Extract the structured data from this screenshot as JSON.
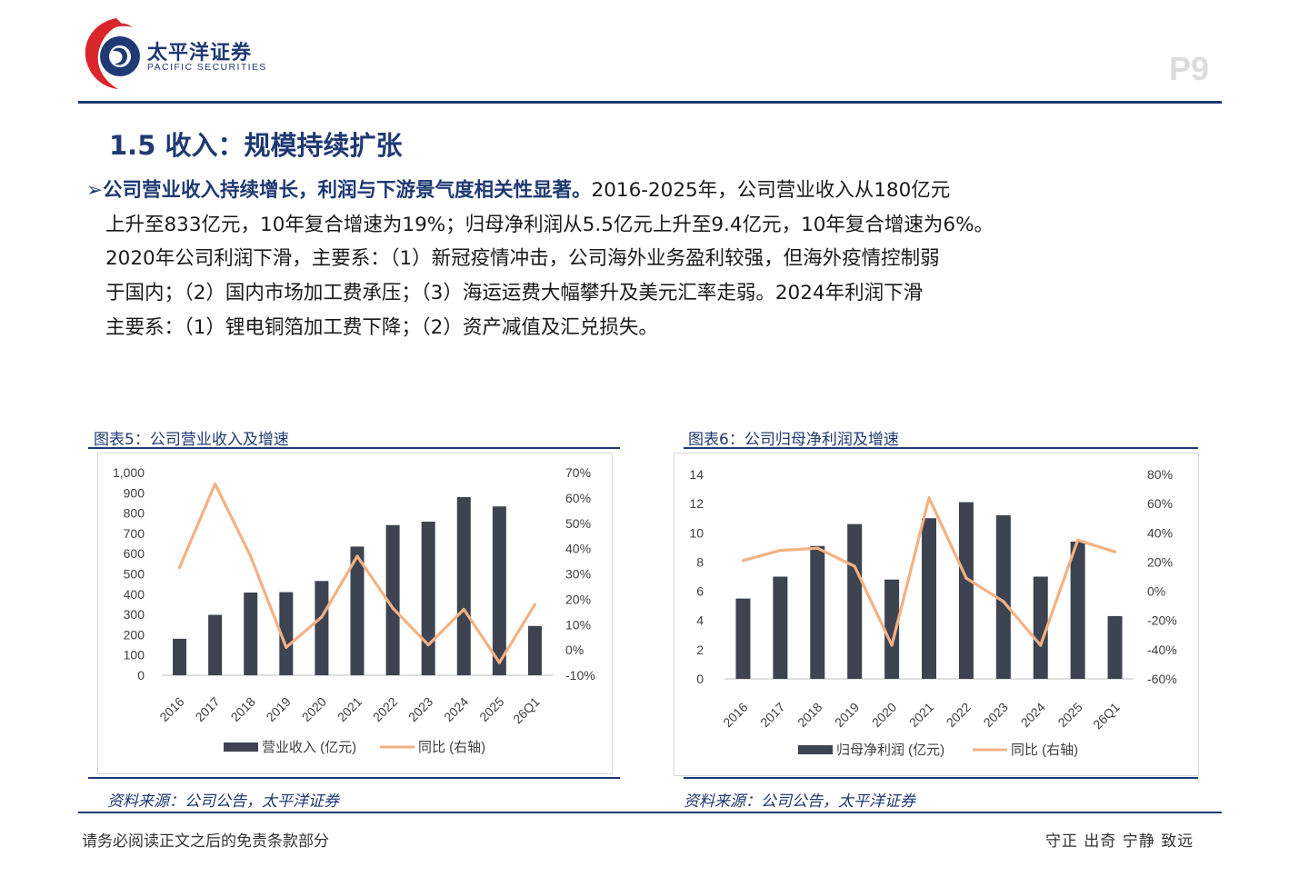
{
  "header": {
    "logo_cn": "太平洋证券",
    "logo_en": "PACIFIC SECURITIES",
    "page_number": "P9"
  },
  "section_title": "1.5 收入：规模持续扩张",
  "paragraph": {
    "bullet": "➢",
    "lead": "公司营业收入持续增长，利润与下游景气度相关性显著。",
    "line1_rest": "2016-2025年，公司营业收入从180亿元",
    "line2": "上升至833亿元，10年复合增速为19%；归母净利润从5.5亿元上升至9.4亿元，10年复合增速为6%。",
    "line3": "2020年公司利润下滑，主要系：（1）新冠疫情冲击，公司海外业务盈利较强，但海外疫情控制弱",
    "line4": "于国内；（2）国内市场加工费承压；（3）海运运费大幅攀升及美元汇率走弱。2024年利润下滑",
    "line5": "主要系：（1）锂电铜箔加工费下降；（2）资产减值及汇兑损失。"
  },
  "figures": [
    {
      "title": "图表5：公司营业收入及增速",
      "source": "资料来源：公司公告，太平洋证券"
    },
    {
      "title": "图表6：公司归母净利润及增速",
      "source": "资料来源：公司公告，太平洋证券"
    }
  ],
  "footer": {
    "left": "请务必阅读正文之后的免责条款部分",
    "right": "守正 出奇 宁静 致远"
  },
  "colors": {
    "brand_blue": "#1f3a73",
    "bar": "#3d4350",
    "line": "#f4b183",
    "logo_red": "#d9262b"
  },
  "chart_data": [
    {
      "type": "bar",
      "categories": [
        "2016",
        "2017",
        "2018",
        "2019",
        "2020",
        "2021",
        "2022",
        "2023",
        "2024",
        "2025",
        "26Q1"
      ],
      "series": [
        {
          "name": "营业收入 (亿元)",
          "axis": "left",
          "type": "bar",
          "values": [
            180,
            298,
            408,
            410,
            465,
            635,
            741,
            758,
            879,
            833,
            243
          ]
        },
        {
          "name": "同比 (右轴)",
          "axis": "right",
          "type": "line",
          "values": [
            32.5,
            65.5,
            37,
            1,
            13,
            37,
            16.5,
            2,
            16,
            -5,
            18
          ]
        }
      ],
      "y_left": {
        "min": 0,
        "max": 1000,
        "step": 100,
        "tick_labels": [
          "0",
          "100",
          "200",
          "300",
          "400",
          "500",
          "600",
          "700",
          "800",
          "900",
          "1,000"
        ]
      },
      "y_right": {
        "min": -10,
        "max": 70,
        "step": 10,
        "tick_labels": [
          "-10%",
          "0%",
          "10%",
          "20%",
          "30%",
          "40%",
          "50%",
          "60%",
          "70%"
        ]
      },
      "legend_position": "bottom",
      "grid": false
    },
    {
      "type": "bar",
      "categories": [
        "2016",
        "2017",
        "2018",
        "2019",
        "2020",
        "2021",
        "2022",
        "2023",
        "2024",
        "2025",
        "26Q1"
      ],
      "series": [
        {
          "name": "归母净利润 (亿元)",
          "axis": "left",
          "type": "bar",
          "values": [
            5.5,
            7.0,
            9.1,
            10.6,
            6.8,
            11.0,
            12.1,
            11.2,
            7.0,
            9.4,
            4.3
          ]
        },
        {
          "name": "同比 (右轴)",
          "axis": "right",
          "type": "line",
          "values": [
            21,
            28,
            29.5,
            17,
            -37,
            64,
            9,
            -7,
            -37,
            35,
            27
          ]
        }
      ],
      "y_left": {
        "min": 0,
        "max": 14,
        "step": 2,
        "tick_labels": [
          "0",
          "2",
          "4",
          "6",
          "8",
          "10",
          "12",
          "14"
        ]
      },
      "y_right": {
        "min": -60,
        "max": 80,
        "step": 20,
        "tick_labels": [
          "-60%",
          "-40%",
          "-20%",
          "0%",
          "20%",
          "40%",
          "60%",
          "80%"
        ]
      },
      "legend_position": "bottom",
      "grid": false
    }
  ]
}
